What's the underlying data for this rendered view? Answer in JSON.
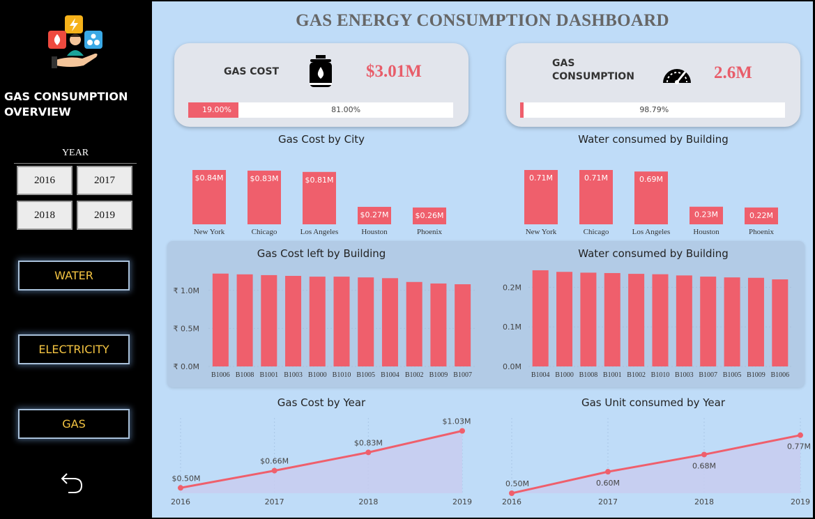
{
  "sidebar": {
    "overview_title": "GAS CONSUMPTION OVERVIEW",
    "year_label": "YEAR",
    "years": [
      "2016",
      "2017",
      "2018",
      "2019"
    ],
    "nav": {
      "water": "WATER",
      "electricity": "ELECTRICITY",
      "gas": "GAS"
    },
    "back_icon": "undo-arrow-icon"
  },
  "dashboard": {
    "title": "GAS ENERGY CONSUMPTION DASHBOARD",
    "colors": {
      "accent": "#ef5f6c",
      "background": "#bfdcf8",
      "card": "#e2e5ec",
      "nav_text": "#f5c542"
    },
    "kpis": [
      {
        "label": "GAS COST",
        "value": "$3.01M",
        "icon": "gas-cylinder-icon",
        "fill_label": "19.00%",
        "rest_label": "81.00%",
        "fill_fraction": 0.19
      },
      {
        "label": "GAS CONSUMPTION",
        "value": "2.6M",
        "icon": "speedometer-icon",
        "fill_label": "",
        "rest_label": "98.79%",
        "fill_fraction": 0.0121
      }
    ]
  },
  "chart_data": [
    {
      "type": "bar",
      "title": "Gas Cost by City",
      "categories": [
        "New York",
        "Chicago",
        "Los Angeles",
        "Houston",
        "Phoenix"
      ],
      "values": [
        0.84,
        0.83,
        0.81,
        0.27,
        0.26
      ],
      "labels": [
        "$0.84M",
        "$0.83M",
        "$0.81M",
        "$0.27M",
        "$0.26M"
      ],
      "ylim": [
        0,
        0.84
      ]
    },
    {
      "type": "bar",
      "title": "Water consumed by Building",
      "categories": [
        "New York",
        "Chicago",
        "Los Angeles",
        "Houston",
        "Phoenix"
      ],
      "values": [
        0.71,
        0.71,
        0.69,
        0.23,
        0.22
      ],
      "labels": [
        "0.71M",
        "0.71M",
        "0.69M",
        "0.23M",
        "0.22M"
      ],
      "ylim": [
        0,
        0.71
      ]
    },
    {
      "type": "bar",
      "title": "Gas Cost left by Building",
      "categories": [
        "B1006",
        "B1008",
        "B1001",
        "B1003",
        "B1000",
        "B1010",
        "B1005",
        "B1004",
        "B1002",
        "B1009",
        "B1007"
      ],
      "values": [
        1.22,
        1.21,
        1.2,
        1.19,
        1.18,
        1.18,
        1.17,
        1.16,
        1.11,
        1.09,
        1.08
      ],
      "yticks": [
        0,
        0.5,
        1.0
      ],
      "ytick_labels": [
        "₹ 0.0M",
        "₹ 0.5M",
        "₹ 1.0M"
      ],
      "ylim": [
        0,
        1.3
      ]
    },
    {
      "type": "bar",
      "title": "Water consumed by Building",
      "categories": [
        "B1004",
        "B1000",
        "B1008",
        "B1001",
        "B1002",
        "B1010",
        "B1003",
        "B1007",
        "B1005",
        "B1009",
        "B1006"
      ],
      "values": [
        0.243,
        0.239,
        0.237,
        0.236,
        0.234,
        0.233,
        0.23,
        0.227,
        0.225,
        0.224,
        0.22
      ],
      "yticks": [
        0,
        0.1,
        0.2
      ],
      "ytick_labels": [
        "0.0M",
        "0.1M",
        "0.2M"
      ],
      "ylim": [
        0,
        0.25
      ]
    },
    {
      "type": "area",
      "title": "Gas Cost by Year",
      "x": [
        "2016",
        "2017",
        "2018",
        "2019"
      ],
      "values": [
        0.5,
        0.66,
        0.83,
        1.03
      ],
      "labels": [
        "$0.50M",
        "$0.66M",
        "$0.83M",
        "$1.03M"
      ],
      "ylim": [
        0.45,
        1.15
      ]
    },
    {
      "type": "area",
      "title": "Gas Unit consumed by Year",
      "x": [
        "2016",
        "2017",
        "2018",
        "2019"
      ],
      "values": [
        0.5,
        0.6,
        0.68,
        0.77
      ],
      "labels": [
        "0.50M",
        "0.60M",
        "0.68M",
        "0.77M"
      ],
      "ylim": [
        0.5,
        0.85
      ]
    }
  ]
}
